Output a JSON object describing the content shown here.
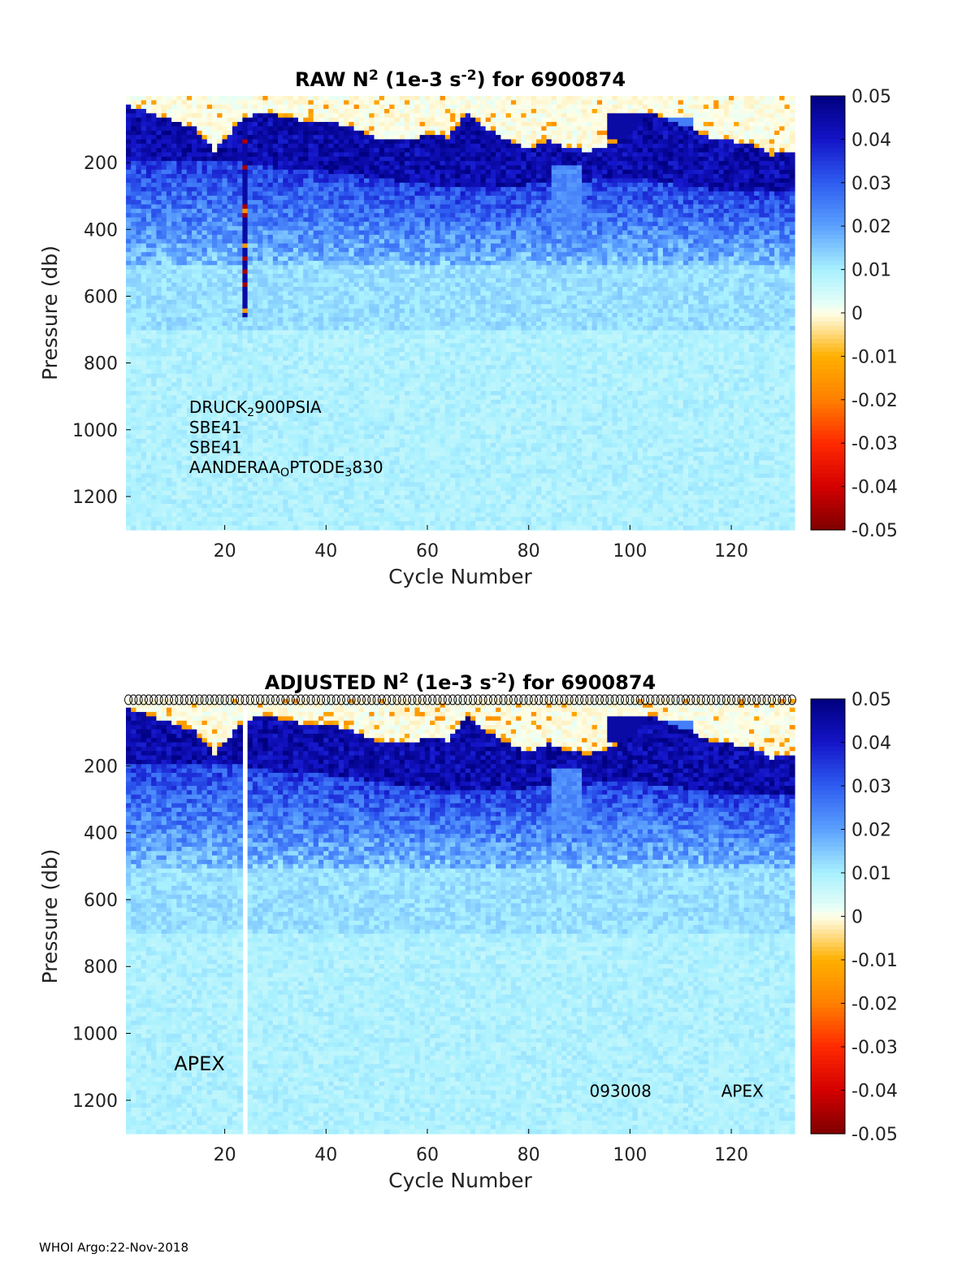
{
  "footer": "WHOI Argo:22-Nov-2018",
  "colorscale": {
    "stops": [
      [
        -0.05,
        "#7f0000"
      ],
      [
        -0.04,
        "#d40000"
      ],
      [
        -0.03,
        "#ff2a00"
      ],
      [
        -0.02,
        "#ff8000"
      ],
      [
        -0.01,
        "#ffb000"
      ],
      [
        -0.002,
        "#fff0c0"
      ],
      [
        0,
        "#ffffe8"
      ],
      [
        0.002,
        "#e6fff6"
      ],
      [
        0.01,
        "#a8f0ff"
      ],
      [
        0.02,
        "#5aa0ff"
      ],
      [
        0.03,
        "#2e5cf0"
      ],
      [
        0.04,
        "#1414c8"
      ],
      [
        0.05,
        "#00007f"
      ]
    ]
  },
  "chart_data": [
    {
      "type": "heatmap",
      "title_parts": {
        "pre": "RAW N",
        "sup1": "2",
        "mid": " (1e-3 s",
        "sup2": "-2",
        "post": ") for 6900874"
      },
      "xlabel": "Cycle Number",
      "ylabel": "Pressure (db)",
      "xlim": [
        1,
        132
      ],
      "ylim": [
        1300,
        0
      ],
      "xticks": [
        20,
        40,
        60,
        80,
        100,
        120
      ],
      "yticks": [
        200,
        400,
        600,
        800,
        1000,
        1200
      ],
      "colorbar": {
        "clim": [
          -0.05,
          0.05
        ],
        "ticks": [
          0.05,
          0.04,
          0.03,
          0.02,
          0.01,
          0,
          -0.01,
          -0.02,
          -0.03,
          -0.04,
          -0.05
        ]
      },
      "annotations": [
        {
          "parts": [
            [
              "DRUCK",
              "n"
            ],
            [
              "2",
              "sub"
            ],
            [
              "900PSIA",
              "n"
            ]
          ],
          "x": 13,
          "y": 950
        },
        {
          "parts": [
            [
              "SBE41",
              "n"
            ]
          ],
          "x": 13,
          "y": 1010
        },
        {
          "parts": [
            [
              "SBE41",
              "n"
            ]
          ],
          "x": 13,
          "y": 1070
        },
        {
          "parts": [
            [
              "AANDERAA",
              "n"
            ],
            [
              "O",
              "sub"
            ],
            [
              "PTODE",
              "n"
            ],
            [
              "3",
              "sub"
            ],
            [
              "830",
              "n"
            ]
          ],
          "x": 13,
          "y": 1130
        }
      ],
      "mixed_layer_top": [
        [
          1,
          20
        ],
        [
          5,
          45
        ],
        [
          10,
          70
        ],
        [
          14,
          90
        ],
        [
          18,
          160
        ],
        [
          21,
          105
        ],
        [
          24,
          60
        ],
        [
          28,
          40
        ],
        [
          32,
          60
        ],
        [
          36,
          70
        ],
        [
          40,
          75
        ],
        [
          44,
          80
        ],
        [
          48,
          110
        ],
        [
          52,
          125
        ],
        [
          56,
          130
        ],
        [
          60,
          105
        ],
        [
          64,
          120
        ],
        [
          68,
          40
        ],
        [
          72,
          95
        ],
        [
          76,
          125
        ],
        [
          80,
          150
        ],
        [
          84,
          130
        ],
        [
          88,
          150
        ],
        [
          92,
          160
        ],
        [
          96,
          140
        ],
        [
          100,
          110
        ],
        [
          104,
          40
        ],
        [
          108,
          70
        ],
        [
          112,
          90
        ],
        [
          116,
          120
        ],
        [
          120,
          130
        ],
        [
          124,
          140
        ],
        [
          128,
          170
        ],
        [
          132,
          160
        ]
      ],
      "mixed_layer_patches": [
        {
          "x": [
            96,
            105
          ],
          "y": [
            40,
            120
          ],
          "kind": "dark"
        },
        {
          "x": [
            104,
            112
          ],
          "y": [
            60,
            100
          ],
          "kind": "mid"
        }
      ],
      "thermocline_bottom": [
        [
          1,
          190
        ],
        [
          10,
          195
        ],
        [
          20,
          185
        ],
        [
          30,
          210
        ],
        [
          40,
          220
        ],
        [
          50,
          240
        ],
        [
          60,
          260
        ],
        [
          70,
          270
        ],
        [
          80,
          260
        ],
        [
          90,
          250
        ],
        [
          100,
          240
        ],
        [
          110,
          260
        ],
        [
          120,
          285
        ],
        [
          132,
          280
        ]
      ],
      "anomaly_column": {
        "cycle": 24,
        "pmin": 70,
        "pmax": 650
      },
      "gap_column": null,
      "profile_markers": false
    },
    {
      "type": "heatmap",
      "title_parts": {
        "pre": "ADJUSTED N",
        "sup1": "2",
        "mid": " (1e-3 s",
        "sup2": "-2",
        "post": ") for 6900874"
      },
      "xlabel": "Cycle Number",
      "ylabel": "Pressure (db)",
      "xlim": [
        1,
        132
      ],
      "ylim": [
        1300,
        0
      ],
      "xticks": [
        20,
        40,
        60,
        80,
        100,
        120
      ],
      "yticks": [
        200,
        400,
        600,
        800,
        1000,
        1200
      ],
      "colorbar": {
        "clim": [
          -0.05,
          0.05
        ],
        "ticks": [
          0.05,
          0.04,
          0.03,
          0.02,
          0.01,
          0,
          -0.01,
          -0.02,
          -0.03,
          -0.04,
          -0.05
        ]
      },
      "annotations": [
        {
          "parts": [
            [
              "APEX",
              "n"
            ]
          ],
          "x": 10,
          "y": 1110,
          "size": "big"
        },
        {
          "parts": [
            [
              "093008",
              "n"
            ]
          ],
          "x": 92,
          "y": 1190
        },
        {
          "parts": [
            [
              "APEX",
              "n"
            ]
          ],
          "x": 118,
          "y": 1190
        }
      ],
      "mixed_layer_top": [
        [
          1,
          20
        ],
        [
          5,
          45
        ],
        [
          10,
          70
        ],
        [
          14,
          90
        ],
        [
          18,
          160
        ],
        [
          21,
          105
        ],
        [
          24,
          60
        ],
        [
          28,
          40
        ],
        [
          32,
          60
        ],
        [
          36,
          70
        ],
        [
          40,
          75
        ],
        [
          44,
          80
        ],
        [
          48,
          110
        ],
        [
          52,
          125
        ],
        [
          56,
          130
        ],
        [
          60,
          105
        ],
        [
          64,
          120
        ],
        [
          68,
          40
        ],
        [
          72,
          95
        ],
        [
          76,
          125
        ],
        [
          80,
          150
        ],
        [
          84,
          130
        ],
        [
          88,
          150
        ],
        [
          92,
          160
        ],
        [
          96,
          140
        ],
        [
          100,
          110
        ],
        [
          104,
          40
        ],
        [
          108,
          70
        ],
        [
          112,
          90
        ],
        [
          116,
          120
        ],
        [
          120,
          130
        ],
        [
          124,
          140
        ],
        [
          128,
          170
        ],
        [
          132,
          160
        ]
      ],
      "mixed_layer_patches": [
        {
          "x": [
            96,
            105
          ],
          "y": [
            40,
            120
          ],
          "kind": "dark"
        },
        {
          "x": [
            104,
            112
          ],
          "y": [
            60,
            100
          ],
          "kind": "mid"
        }
      ],
      "thermocline_bottom": [
        [
          1,
          190
        ],
        [
          10,
          195
        ],
        [
          20,
          185
        ],
        [
          30,
          210
        ],
        [
          40,
          220
        ],
        [
          50,
          240
        ],
        [
          60,
          260
        ],
        [
          70,
          270
        ],
        [
          80,
          260
        ],
        [
          90,
          250
        ],
        [
          100,
          240
        ],
        [
          110,
          260
        ],
        [
          120,
          285
        ],
        [
          132,
          280
        ]
      ],
      "anomaly_column": null,
      "gap_column": {
        "cycle": 24
      },
      "profile_markers": true
    }
  ]
}
